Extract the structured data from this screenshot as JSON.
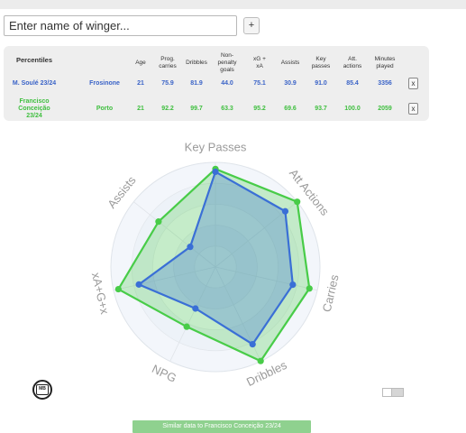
{
  "search": {
    "placeholder": "Enter name of winger...",
    "add_label": "+"
  },
  "table": {
    "title": "Percentiles",
    "columns": [
      {
        "key": "age",
        "label": "Age"
      },
      {
        "key": "prog",
        "label": "Prog.\ncarries"
      },
      {
        "key": "drib",
        "label": "Dribbles"
      },
      {
        "key": "npg",
        "label": "Non-\npenalty\ngoals"
      },
      {
        "key": "xgxa",
        "label": "xG +\nxA"
      },
      {
        "key": "assists",
        "label": "Assists"
      },
      {
        "key": "kp",
        "label": "Key\npasses"
      },
      {
        "key": "att",
        "label": "Att.\nactions"
      },
      {
        "key": "mins",
        "label": "Minutes\nplayed"
      }
    ],
    "rows": [
      {
        "name": "M. Soulé 23/24",
        "team": "Frosinone",
        "values": [
          "21",
          "75.9",
          "81.9",
          "44.0",
          "75.1",
          "30.9",
          "91.0",
          "85.4",
          "3356"
        ],
        "remove": "x"
      },
      {
        "name": "Francisco\nConceição\n23/24",
        "team": "Porto",
        "values": [
          "21",
          "92.2",
          "99.7",
          "63.3",
          "95.2",
          "69.6",
          "93.7",
          "100.0",
          "2059"
        ],
        "remove": "x"
      }
    ]
  },
  "chart_data": {
    "type": "radar",
    "axes": [
      "Key Passes",
      "Att Actions",
      "Carries",
      "Dribbles",
      "NPG",
      "xA+G+x",
      "Assists"
    ],
    "range": [
      0,
      100
    ],
    "series": [
      {
        "name": "M. Soulé 23/24",
        "color": "#3a6fd6",
        "values": [
          91.0,
          85.4,
          75.9,
          81.9,
          44.0,
          75.1,
          30.9
        ]
      },
      {
        "name": "Francisco Conceição 23/24",
        "color": "#48cc48",
        "values": [
          93.7,
          100.0,
          92.2,
          99.7,
          63.3,
          95.2,
          69.6
        ]
      }
    ]
  },
  "logo_text": "MB",
  "similar_button": "Similar data to Francisco Conceição 23/24",
  "colors": {
    "blue": "#3a6fd6",
    "green": "#48cc48",
    "panel": "#eeeeee"
  }
}
